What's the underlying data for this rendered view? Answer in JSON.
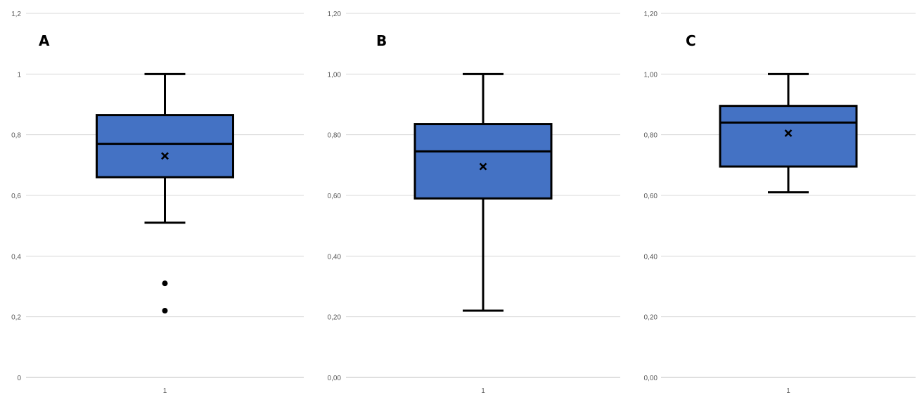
{
  "chart_data": [
    {
      "type": "box",
      "title": "A",
      "categories": [
        "1"
      ],
      "y_ticks": [
        "0",
        "0,2",
        "0,4",
        "0,6",
        "0,8",
        "1",
        "1,2"
      ],
      "ylim": [
        0,
        1.2
      ],
      "grid": true,
      "box_color": "#4472C4",
      "series": [
        {
          "min": 0.51,
          "q1": 0.66,
          "median": 0.77,
          "q3": 0.865,
          "max": 1.0,
          "mean": 0.73,
          "outliers": [
            0.31,
            0.22
          ]
        }
      ]
    },
    {
      "type": "box",
      "title": "B",
      "categories": [
        "1"
      ],
      "y_ticks": [
        "0,00",
        "0,20",
        "0,40",
        "0,60",
        "0,80",
        "1,00",
        "1,20"
      ],
      "ylim": [
        0,
        1.2
      ],
      "grid": true,
      "box_color": "#4472C4",
      "series": [
        {
          "min": 0.22,
          "q1": 0.59,
          "median": 0.745,
          "q3": 0.835,
          "max": 1.0,
          "mean": 0.695,
          "outliers": []
        }
      ]
    },
    {
      "type": "box",
      "title": "C",
      "categories": [
        "1"
      ],
      "y_ticks": [
        "0,00",
        "0,20",
        "0,40",
        "0,60",
        "0,80",
        "1,00",
        "1,20"
      ],
      "ylim": [
        0,
        1.2
      ],
      "grid": true,
      "box_color": "#4472C4",
      "series": [
        {
          "min": 0.61,
          "q1": 0.695,
          "median": 0.84,
          "q3": 0.895,
          "max": 1.0,
          "mean": 0.805,
          "outliers": []
        }
      ]
    }
  ]
}
